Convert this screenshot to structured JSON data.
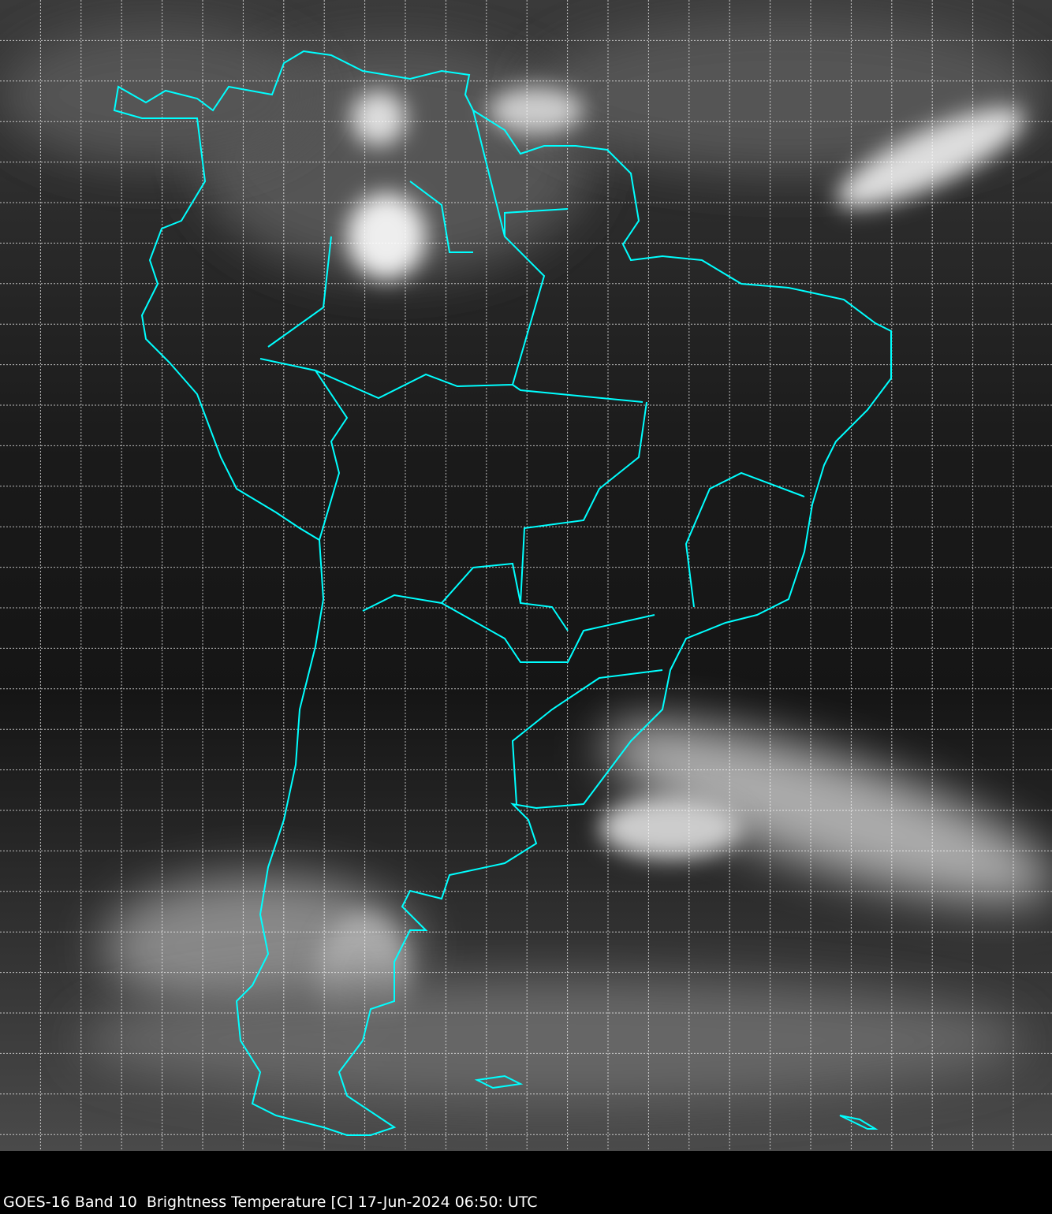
{
  "map": {
    "caption": "GOES-16 Band 10  Brightness Temperature [C] 17-Jun-2024 06:50: UTC",
    "boundary_color": "#00ffff",
    "grid_color": "#ffffff",
    "grid_style": "dotted",
    "background_color": "#000000"
  }
}
